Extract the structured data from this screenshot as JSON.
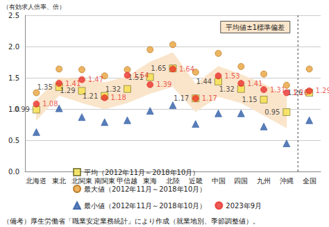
{
  "chart_data": {
    "type": "scatter",
    "y_label": "（有効求人倍率、倍）",
    "note": "（備考）厚生労働省「職業安定業務統計」により作成（就業地別、季節調整値）。",
    "categories": [
      "北海道",
      "東北",
      "北関東",
      "南関東",
      "甲信越",
      "東海",
      "北陸",
      "近畿",
      "中国",
      "四国",
      "九州",
      "沖縄",
      "全国"
    ],
    "band": {
      "name": "平均値±1標準偏差",
      "color": "#fae5cb",
      "lower": [
        0.82,
        1.22,
        1.1,
        1.0,
        1.1,
        1.25,
        1.36,
        0.96,
        1.2,
        1.1,
        0.9,
        0.7,
        null
      ],
      "upper": [
        1.14,
        1.5,
        1.48,
        1.42,
        1.52,
        1.75,
        1.9,
        1.4,
        1.68,
        1.55,
        1.4,
        1.2,
        null
      ]
    },
    "series": [
      {
        "name": "平均（2012年11月～2018年10月）",
        "color": "#f5e04a",
        "marker": "square",
        "data_labels": true,
        "values": [
          0.99,
          1.35,
          1.29,
          1.21,
          1.32,
          1.51,
          1.65,
          1.17,
          1.44,
          1.32,
          1.15,
          0.95,
          1.26
        ]
      },
      {
        "name": "最大値（2012年11月～2018年10月）",
        "color": "#e9a23b",
        "marker": "circle",
        "data_labels": false,
        "values": [
          1.26,
          1.64,
          1.63,
          1.53,
          1.63,
          1.95,
          2.03,
          1.59,
          1.89,
          1.68,
          1.56,
          1.38,
          1.64
        ]
      },
      {
        "name": "最小値（2012年11月～2018年10月）",
        "color": "#2e5da6",
        "marker": "triangle",
        "data_labels": false,
        "values": [
          0.63,
          1.01,
          0.87,
          0.79,
          0.82,
          0.97,
          1.06,
          0.76,
          0.93,
          0.93,
          0.72,
          0.45,
          0.82
        ]
      },
      {
        "name": "2023年9月",
        "color": "#e8312a",
        "marker": "circle",
        "data_labels": true,
        "values": [
          1.08,
          1.41,
          1.47,
          1.18,
          1.54,
          1.39,
          1.64,
          1.17,
          1.53,
          1.41,
          1.31,
          1.26,
          1.29
        ]
      }
    ],
    "ylim": [
      0,
      2.5
    ],
    "yticks": [
      {
        "value": 0,
        "label": "0.0"
      },
      {
        "value": 0.5,
        "label": "0.5"
      },
      {
        "value": 1,
        "label": "1.0"
      },
      {
        "value": 1.5,
        "label": "1.5"
      },
      {
        "value": 2,
        "label": "2.0"
      },
      {
        "value": 2.5,
        "label": "2.5"
      }
    ],
    "grid": true,
    "legend": "bottom"
  }
}
